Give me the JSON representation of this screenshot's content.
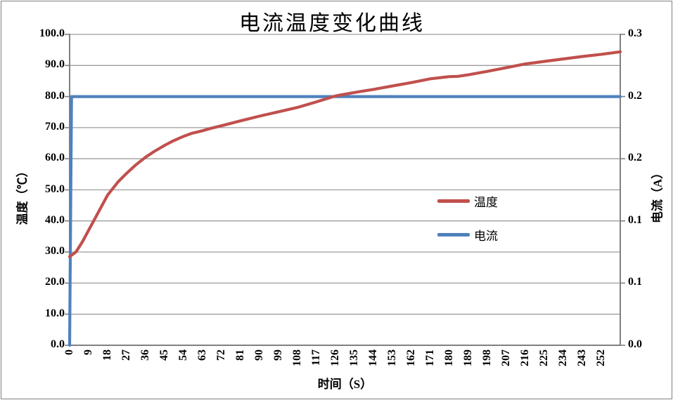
{
  "title": "电流温度变化曲线",
  "colors": {
    "temperature": "#C0504D",
    "current": "#4F81BD",
    "gridline": "#9C9C9C",
    "axis": "#808080",
    "border": "#808080",
    "text": "#000000",
    "background": "#FFFFFF"
  },
  "legend": {
    "items": [
      {
        "label": "温度",
        "color": "#C0504D"
      },
      {
        "label": "电流",
        "color": "#4F81BD"
      }
    ]
  },
  "chart_data": {
    "type": "line",
    "title": "电流温度变化曲线",
    "xlabel": "时间（S）",
    "ylabel_left": "温度（℃）",
    "ylabel_right": "电流（A）",
    "grid": true,
    "legend_position": "inside-right",
    "xlim": [
      0,
      261
    ],
    "ylim_left": [
      0,
      100
    ],
    "ylim_right": [
      0,
      0.25
    ],
    "x_ticks": [
      "0",
      "9",
      "18",
      "27",
      "36",
      "45",
      "54",
      "63",
      "72",
      "81",
      "90",
      "99",
      "108",
      "117",
      "126",
      "135",
      "144",
      "153",
      "162",
      "171",
      "180",
      "189",
      "198",
      "207",
      "216",
      "225",
      "234",
      "243",
      "252"
    ],
    "left_ticks": [
      {
        "label": "100.0",
        "value": 100
      },
      {
        "label": "90.0",
        "value": 90
      },
      {
        "label": "80.0",
        "value": 80
      },
      {
        "label": "70.0",
        "value": 70
      },
      {
        "label": "60.0",
        "value": 60
      },
      {
        "label": "50.0",
        "value": 50
      },
      {
        "label": "40.0",
        "value": 40
      },
      {
        "label": "30.0",
        "value": 30
      },
      {
        "label": "20.0",
        "value": 20
      },
      {
        "label": "10.0",
        "value": 10
      },
      {
        "label": "0.0",
        "value": 0
      }
    ],
    "right_ticks": [
      {
        "label": "0.3",
        "value": 0.25
      },
      {
        "label": "0.2",
        "value": 0.2
      },
      {
        "label": "0.2",
        "value": 0.15
      },
      {
        "label": "0.1",
        "value": 0.1
      },
      {
        "label": "0.1",
        "value": 0.05
      },
      {
        "label": "0.0",
        "value": 0.0
      }
    ],
    "series": [
      {
        "name": "温度",
        "axis": "left",
        "unit": "℃",
        "color": "#C0504D",
        "points": [
          [
            0,
            28.5
          ],
          [
            3,
            30.0
          ],
          [
            6,
            33.2
          ],
          [
            9,
            37.0
          ],
          [
            13,
            42.0
          ],
          [
            18,
            48.3
          ],
          [
            23,
            52.6
          ],
          [
            27,
            55.3
          ],
          [
            31,
            57.8
          ],
          [
            36,
            60.5
          ],
          [
            40,
            62.3
          ],
          [
            45,
            64.3
          ],
          [
            49,
            65.7
          ],
          [
            54,
            67.2
          ],
          [
            58,
            68.2
          ],
          [
            63,
            69.0
          ],
          [
            67,
            69.8
          ],
          [
            72,
            70.6
          ],
          [
            81,
            72.2
          ],
          [
            90,
            73.7
          ],
          [
            99,
            75.1
          ],
          [
            108,
            76.5
          ],
          [
            117,
            78.3
          ],
          [
            126,
            80.2
          ],
          [
            135,
            81.3
          ],
          [
            144,
            82.3
          ],
          [
            153,
            83.4
          ],
          [
            162,
            84.5
          ],
          [
            171,
            85.7
          ],
          [
            180,
            86.4
          ],
          [
            184,
            86.5
          ],
          [
            189,
            87.0
          ],
          [
            198,
            88.1
          ],
          [
            207,
            89.3
          ],
          [
            216,
            90.5
          ],
          [
            225,
            91.3
          ],
          [
            234,
            92.1
          ],
          [
            243,
            92.9
          ],
          [
            252,
            93.6
          ],
          [
            261,
            94.4
          ]
        ]
      },
      {
        "name": "电流",
        "axis": "right",
        "unit": "A",
        "color": "#4F81BD",
        "points": [
          [
            0,
            0
          ],
          [
            0.9,
            0.2
          ],
          [
            261,
            0.2
          ]
        ]
      }
    ]
  }
}
